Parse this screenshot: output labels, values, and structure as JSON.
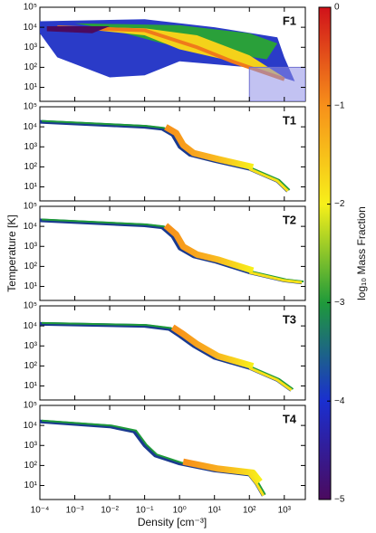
{
  "chart_data": {
    "type": "heatmap",
    "xlabel": "Density [cm⁻³]",
    "ylabel": "Temperature [K]",
    "xscale": "log",
    "yscale": "log",
    "xlim": [
      0.0001,
      4000
    ],
    "xticks": [
      {
        "value": 0.0001,
        "label": "10⁻⁴"
      },
      {
        "value": 0.001,
        "label": "10⁻³"
      },
      {
        "value": 0.01,
        "label": "10⁻²"
      },
      {
        "value": 0.1,
        "label": "10⁻¹"
      },
      {
        "value": 1,
        "label": "10⁰"
      },
      {
        "value": 10,
        "label": "10¹"
      },
      {
        "value": 100,
        "label": "10²"
      },
      {
        "value": 1000,
        "label": "10³"
      }
    ],
    "panels": [
      {
        "title": "F1",
        "ylim": [
          2,
          100000
        ],
        "yticks": [
          {
            "value": 10,
            "label": "10¹"
          },
          {
            "value": 100,
            "label": "10²"
          },
          {
            "value": 1000,
            "label": "10³"
          },
          {
            "value": 10000,
            "label": "10⁴"
          },
          {
            "value": 100000,
            "label": "10⁵"
          }
        ]
      },
      {
        "title": "T1",
        "ylim": [
          2,
          100000
        ],
        "yticks": [
          {
            "value": 10,
            "label": "10¹"
          },
          {
            "value": 100,
            "label": "10²"
          },
          {
            "value": 1000,
            "label": "10³"
          },
          {
            "value": 10000,
            "label": "10⁴"
          },
          {
            "value": 100000,
            "label": "10⁵"
          }
        ]
      },
      {
        "title": "T2",
        "ylim": [
          2,
          100000
        ],
        "yticks": [
          {
            "value": 10,
            "label": "10¹"
          },
          {
            "value": 100,
            "label": "10²"
          },
          {
            "value": 1000,
            "label": "10³"
          },
          {
            "value": 10000,
            "label": "10⁴"
          },
          {
            "value": 100000,
            "label": "10⁵"
          }
        ]
      },
      {
        "title": "T3",
        "ylim": [
          2,
          100000
        ],
        "yticks": [
          {
            "value": 10,
            "label": "10¹"
          },
          {
            "value": 100,
            "label": "10²"
          },
          {
            "value": 1000,
            "label": "10³"
          },
          {
            "value": 10000,
            "label": "10⁴"
          },
          {
            "value": 100000,
            "label": "10⁵"
          }
        ]
      },
      {
        "title": "T4",
        "ylim": [
          2,
          100000
        ],
        "yticks": [
          {
            "value": 10,
            "label": "10¹"
          },
          {
            "value": 100,
            "label": "10²"
          },
          {
            "value": 1000,
            "label": "10³"
          },
          {
            "value": 10000,
            "label": "10⁴"
          },
          {
            "value": 100000,
            "label": "10⁵"
          }
        ]
      }
    ],
    "colorbar": {
      "label": "log₁₀ Mass Fraction",
      "lim": [
        -5,
        0
      ],
      "colors": [
        "#4b0a5e",
        "#1a2fd0",
        "#1f9a3a",
        "#f7f01a",
        "#f7901a",
        "#d0121a"
      ],
      "ticks": [
        {
          "value": -5,
          "label": "−5"
        },
        {
          "value": -4,
          "label": "−4"
        },
        {
          "value": -3,
          "label": "−3"
        },
        {
          "value": -2,
          "label": "−2"
        },
        {
          "value": -1,
          "label": "−1"
        },
        0
      ]
    }
  }
}
